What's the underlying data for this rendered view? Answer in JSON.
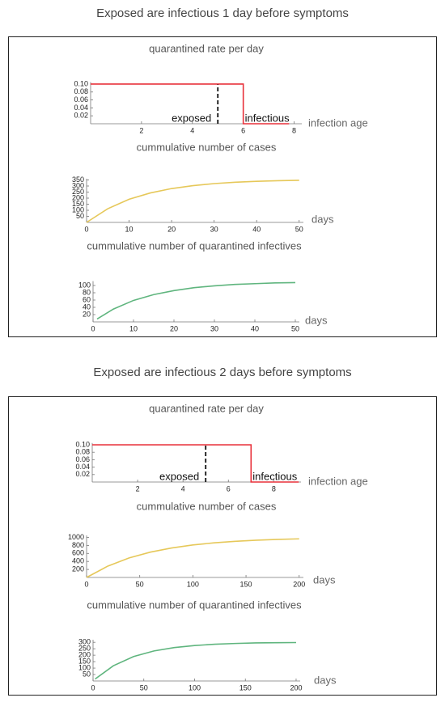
{
  "figure_titles": [
    "Exposed are infectious 1 day before symptoms",
    "Exposed are infectious 2 days before symptoms"
  ],
  "chart_data": [
    {
      "type": "line",
      "title": "quarantined rate per day",
      "x_label": "infection age",
      "x": [
        0,
        6,
        6,
        7.8
      ],
      "values": [
        0.1,
        0.1,
        0,
        0
      ],
      "color": "#e8303a",
      "vline": 5,
      "vline_style": "dashed",
      "annotations": [
        "exposed",
        "infectious"
      ],
      "xlim": [
        0,
        8.3
      ],
      "ylim": [
        0,
        0.105
      ],
      "xticks": [
        2,
        4,
        6,
        8
      ],
      "yticks": [
        0.02,
        0.04,
        0.06,
        0.08,
        {
          "value": 0.1,
          "label": "0.10"
        }
      ]
    },
    {
      "type": "line",
      "title": "cummulative number of cases",
      "x_label": "days",
      "x": [
        0,
        5,
        10,
        15,
        20,
        25,
        30,
        35,
        40,
        45,
        50
      ],
      "values": [
        0,
        113,
        191,
        243,
        279,
        303,
        320,
        331,
        339,
        344,
        347
      ],
      "color": "#e6c85a",
      "xlim": [
        0,
        51
      ],
      "ylim": [
        0,
        360
      ],
      "xticks": [
        0,
        10,
        20,
        30,
        40,
        50
      ],
      "yticks": [
        50,
        100,
        150,
        200,
        250,
        300,
        350
      ]
    },
    {
      "type": "line",
      "title": "cummulative number of quarantined infectives",
      "x_label": "days",
      "x": [
        1,
        5,
        10,
        15,
        20,
        25,
        30,
        35,
        40,
        45,
        50
      ],
      "values": [
        8,
        35,
        59,
        75,
        86,
        94,
        99,
        103,
        105,
        107,
        108
      ],
      "color": "#5fb57e",
      "xlim": [
        0,
        51
      ],
      "ylim": [
        0,
        112
      ],
      "xticks": [
        0,
        10,
        20,
        30,
        40,
        50
      ],
      "yticks": [
        20,
        40,
        60,
        80,
        100
      ]
    },
    {
      "type": "line",
      "title": "quarantined rate per day",
      "x_label": "infection age",
      "x": [
        0,
        7,
        7,
        9.1
      ],
      "values": [
        0.1,
        0.1,
        0,
        0
      ],
      "color": "#e8303a",
      "vline": 5,
      "vline_style": "dashed",
      "annotations": [
        "exposed",
        "infectious"
      ],
      "xlim": [
        0,
        9.2
      ],
      "ylim": [
        0,
        0.105
      ],
      "xticks": [
        2,
        4,
        6,
        8
      ],
      "yticks": [
        0.02,
        0.04,
        0.06,
        0.08,
        {
          "value": 0.1,
          "label": "0.10"
        }
      ]
    },
    {
      "type": "line",
      "title": "cummulative number of cases",
      "x_label": "days",
      "x": [
        0,
        20,
        40,
        60,
        80,
        100,
        120,
        140,
        160,
        180,
        200
      ],
      "values": [
        0,
        283,
        487,
        632,
        736,
        811,
        865,
        903,
        930,
        950,
        964
      ],
      "color": "#e6c85a",
      "xlim": [
        0,
        204
      ],
      "ylim": [
        0,
        1050
      ],
      "xticks": [
        0,
        50,
        100,
        150,
        200
      ],
      "yticks": [
        200,
        400,
        600,
        800,
        1000
      ]
    },
    {
      "type": "line",
      "title": "cummulative number of quarantined infectives",
      "x_label": "days",
      "x": [
        2,
        20,
        40,
        60,
        80,
        100,
        120,
        140,
        160,
        180,
        200
      ],
      "values": [
        15,
        118,
        190,
        233,
        259,
        275,
        285,
        291,
        295,
        297,
        298
      ],
      "color": "#5fb57e",
      "xlim": [
        0,
        204
      ],
      "ylim": [
        0,
        320
      ],
      "xticks": [
        0,
        50,
        100,
        150,
        200
      ],
      "yticks": [
        50,
        100,
        150,
        200,
        250,
        300
      ]
    }
  ]
}
